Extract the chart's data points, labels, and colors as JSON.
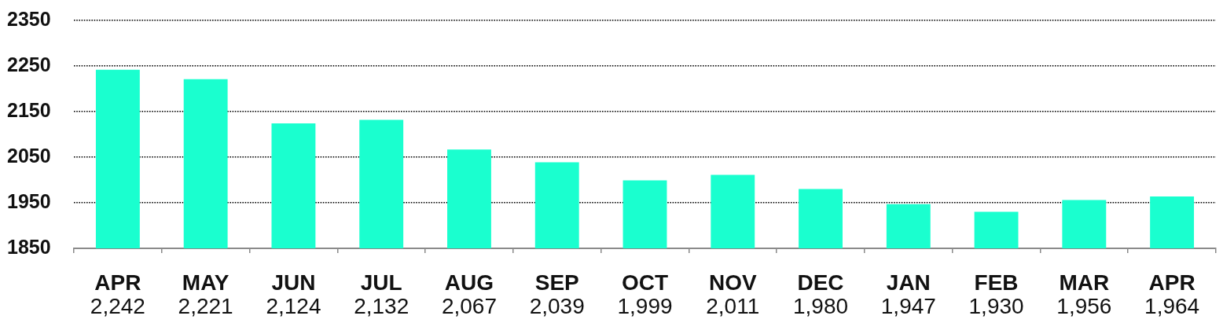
{
  "chart_data": {
    "type": "bar",
    "categories": [
      "APR",
      "MAY",
      "JUN",
      "JUL",
      "AUG",
      "SEP",
      "OCT",
      "NOV",
      "DEC",
      "JAN",
      "FEB",
      "MAR",
      "APR"
    ],
    "values": [
      2242,
      2221,
      2124,
      2132,
      2067,
      2039,
      1999,
      2011,
      1980,
      1947,
      1930,
      1956,
      1964
    ],
    "value_labels": [
      "2,242",
      "2,221",
      "2,124",
      "2,132",
      "2,067",
      "2,039",
      "1,999",
      "2,011",
      "1,980",
      "1,947",
      "1,930",
      "1,956",
      "1,964"
    ],
    "color": "#1affcf",
    "ylim": [
      1850,
      2350
    ],
    "yticks": [
      1850,
      1950,
      2050,
      2150,
      2250,
      2350
    ],
    "grid": "y"
  }
}
